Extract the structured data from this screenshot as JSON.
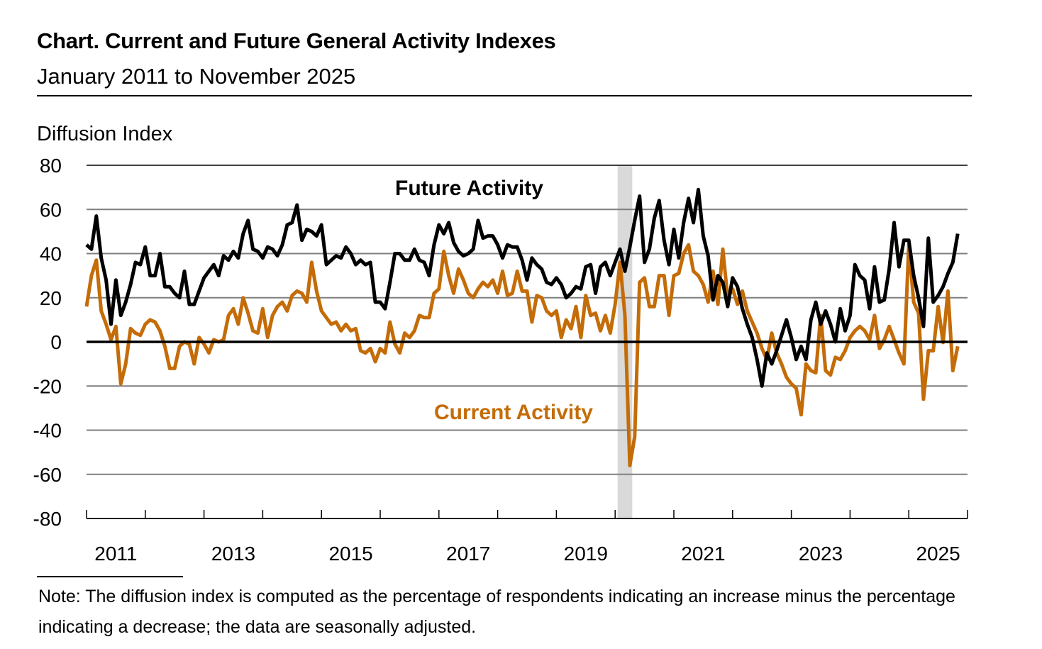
{
  "chart_data": {
    "type": "line",
    "title": "Chart. Current and Future General Activity Indexes",
    "subtitle": "January 2011 to November 2025",
    "ylabel": "Diffusion Index",
    "xlabel": "",
    "ylim": [
      -80,
      80
    ],
    "yticks": [
      "80",
      "60",
      "40",
      "20",
      "0",
      "-20",
      "-40",
      "-60",
      "-80"
    ],
    "xtick_labels": [
      "2011",
      "2013",
      "2015",
      "2017",
      "2019",
      "2021",
      "2023",
      "2025"
    ],
    "x_start": "2011-01",
    "x_end": "2025-11",
    "frequency": "monthly",
    "grid": true,
    "recession_shading": {
      "start": "2020-02",
      "end": "2020-04",
      "color": "#D9D9D9"
    },
    "series": [
      {
        "name": "Future Activity",
        "color": "#000000",
        "values": [
          44,
          42,
          57,
          38,
          28,
          8,
          28,
          12,
          18,
          26,
          36,
          35,
          43,
          30,
          30,
          40,
          25,
          25,
          22,
          20,
          32,
          17,
          17,
          23,
          29,
          32,
          35,
          30,
          39,
          37,
          41,
          38,
          49,
          55,
          42,
          41,
          38,
          43,
          42,
          39,
          44,
          53,
          54,
          62,
          46,
          51,
          50,
          48,
          53,
          35,
          37,
          39,
          38,
          43,
          40,
          35,
          37,
          35,
          36,
          18,
          18,
          15,
          27,
          40,
          40,
          37,
          37,
          42,
          37,
          36,
          30,
          44,
          53,
          49,
          54,
          45,
          41,
          39,
          40,
          42,
          55,
          47,
          48,
          48,
          44,
          38,
          44,
          43,
          43,
          37,
          28,
          38,
          35,
          33,
          27,
          26,
          29,
          26,
          20,
          22,
          25,
          24,
          34,
          35,
          22,
          34,
          36,
          30,
          36,
          42,
          32,
          43,
          55,
          66,
          36,
          42,
          56,
          64,
          46,
          35,
          51,
          38,
          54,
          65,
          54,
          69,
          48,
          39,
          19,
          30,
          27,
          16,
          29,
          25,
          15,
          8,
          2,
          -8,
          -20,
          -5,
          -10,
          -4,
          3,
          10,
          2,
          -8,
          -2,
          -8,
          10,
          18,
          8,
          14,
          8,
          0,
          15,
          5,
          12,
          35,
          30,
          28,
          15,
          34,
          18,
          19,
          33,
          54,
          34,
          46,
          46,
          30,
          20,
          7,
          47,
          18,
          21,
          25,
          31,
          36,
          49
        ]
      },
      {
        "name": "Current Activity",
        "color": "#C46C08",
        "values": [
          16,
          30,
          37,
          14,
          8,
          1,
          7,
          -19,
          -10,
          6,
          4,
          3,
          8,
          10,
          9,
          5,
          -2,
          -12,
          -12,
          -2,
          0,
          -1,
          -10,
          2,
          -1,
          -5,
          1,
          0,
          1,
          12,
          15,
          8,
          20,
          13,
          5,
          4,
          15,
          2,
          12,
          16,
          18,
          14,
          21,
          23,
          22,
          18,
          36,
          23,
          14,
          11,
          8,
          9,
          5,
          8,
          5,
          6,
          -4,
          -5,
          -3,
          -9,
          -3,
          -5,
          9,
          -1,
          -5,
          4,
          2,
          5,
          12,
          11,
          11,
          22,
          24,
          41,
          30,
          22,
          33,
          28,
          22,
          20,
          24,
          27,
          25,
          28,
          22,
          32,
          21,
          22,
          32,
          23,
          23,
          9,
          21,
          20,
          14,
          12,
          14,
          2,
          10,
          6,
          16,
          2,
          21,
          12,
          13,
          5,
          12,
          4,
          17,
          36,
          12,
          -56,
          -43,
          27,
          29,
          16,
          16,
          30,
          30,
          12,
          30,
          31,
          40,
          44,
          32,
          30,
          26,
          18,
          32,
          17,
          42,
          20,
          24,
          17,
          23,
          14,
          9,
          4,
          -3,
          -8,
          4,
          -5,
          -10,
          -16,
          -19,
          -21,
          -33,
          -10,
          -13,
          -14,
          12,
          -13,
          -15,
          -7,
          -8,
          -4,
          2,
          5,
          7,
          5,
          1,
          12,
          -3,
          1,
          7,
          1,
          -5,
          -10,
          44,
          18,
          13,
          -26,
          -4,
          -4,
          16,
          -0.3,
          23,
          -13,
          -2
        ]
      }
    ],
    "note": "Note: The diffusion index is computed as the percentage of respondents indicating an increase minus the percentage indicating a decrease; the data are seasonally adjusted."
  }
}
